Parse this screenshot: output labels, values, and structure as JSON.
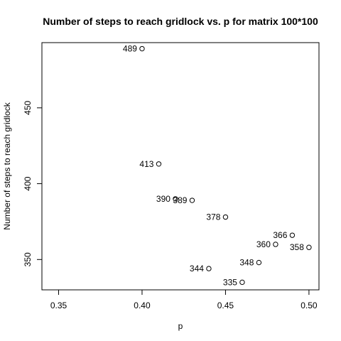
{
  "chart_data": {
    "type": "scatter",
    "title": "Number of steps to reach gridlock vs. p for matrix 100*100",
    "xlabel": "p",
    "ylabel": "Number of steps to reach gridlock",
    "xlim": [
      0.34,
      0.506
    ],
    "ylim": [
      330,
      493
    ],
    "x_ticks": [
      0.35,
      0.4,
      0.45,
      0.5
    ],
    "x_tick_labels": [
      "0.35",
      "0.40",
      "0.45",
      "0.50"
    ],
    "y_ticks": [
      350,
      400,
      450
    ],
    "y_tick_labels": [
      "350",
      "400",
      "450"
    ],
    "grid": false,
    "legend": "none",
    "point_label_position": "left",
    "points": [
      {
        "x": 0.4,
        "y": 489,
        "label": "489"
      },
      {
        "x": 0.41,
        "y": 413,
        "label": "413"
      },
      {
        "x": 0.42,
        "y": 390,
        "label": "390"
      },
      {
        "x": 0.43,
        "y": 389,
        "label": "389"
      },
      {
        "x": 0.44,
        "y": 344,
        "label": "344"
      },
      {
        "x": 0.45,
        "y": 378,
        "label": "378"
      },
      {
        "x": 0.46,
        "y": 335,
        "label": "335"
      },
      {
        "x": 0.47,
        "y": 348,
        "label": "348"
      },
      {
        "x": 0.48,
        "y": 360,
        "label": "360"
      },
      {
        "x": 0.49,
        "y": 366,
        "label": "366"
      },
      {
        "x": 0.5,
        "y": 358,
        "label": "358"
      }
    ]
  }
}
